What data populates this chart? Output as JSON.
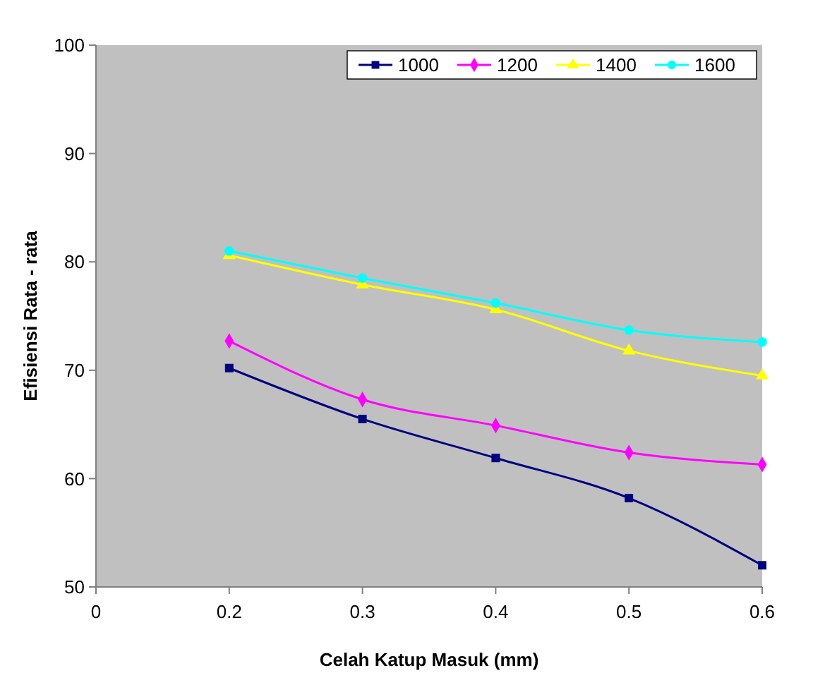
{
  "chart_data": {
    "type": "line",
    "xlabel": "Celah Katup Masuk (mm)",
    "ylabel": "Efisiensi Rata - rata",
    "categories": [
      "0",
      "0.2",
      "0.3",
      "0.4",
      "0.5",
      "0.6"
    ],
    "series": [
      {
        "name": "1000",
        "color": "#000080",
        "marker": "square",
        "values": [
          null,
          70.2,
          65.5,
          61.9,
          58.2,
          52.0
        ]
      },
      {
        "name": "1200",
        "color": "#ff00ff",
        "marker": "diamond",
        "values": [
          null,
          72.7,
          67.3,
          64.9,
          62.4,
          61.3
        ]
      },
      {
        "name": "1400",
        "color": "#ffff00",
        "marker": "triangle",
        "values": [
          null,
          80.6,
          77.9,
          75.6,
          71.8,
          69.5
        ]
      },
      {
        "name": "1600",
        "color": "#00ffff",
        "marker": "circle",
        "values": [
          null,
          81.0,
          78.5,
          76.2,
          73.7,
          72.6
        ]
      }
    ],
    "ylim": [
      50,
      100
    ],
    "yticks": [
      50,
      60,
      70,
      80,
      90,
      100
    ],
    "grid": false,
    "legend": "top right",
    "line_style": "solid"
  }
}
